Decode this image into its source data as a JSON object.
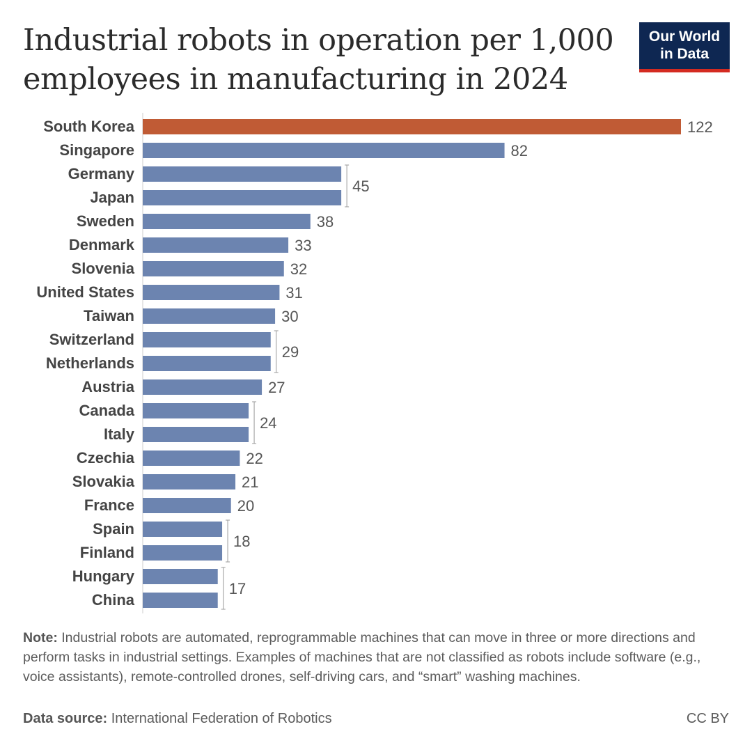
{
  "header": {
    "title": "Industrial robots in operation per 1,000 employees in manufacturing in 2024",
    "logo_line1": "Our World",
    "logo_line2": "in Data"
  },
  "footer": {
    "note_label": "Note:",
    "note_text": " Industrial robots are automated, reprogrammable machines that can move in three or more directions and perform tasks in industrial settings. Examples of machines that are not classified as robots include software (e.g., voice assistants), remote-controlled drones, self-driving cars, and “smart” washing machines.",
    "source_label": "Data source:",
    "source_text": " International Federation of Robotics",
    "license": "CC BY"
  },
  "colors": {
    "bar_default": "#6c84b0",
    "bar_highlight": "#c05b35",
    "axis": "#cccccc",
    "label": "#444444",
    "value": "#555555"
  },
  "chart_data": {
    "type": "bar",
    "orientation": "horizontal",
    "categories": [
      "South Korea",
      "Singapore",
      "Germany",
      "Japan",
      "Sweden",
      "Denmark",
      "Slovenia",
      "United States",
      "Taiwan",
      "Switzerland",
      "Netherlands",
      "Austria",
      "Canada",
      "Italy",
      "Czechia",
      "Slovakia",
      "France",
      "Spain",
      "Finland",
      "Hungary",
      "China"
    ],
    "values": [
      122,
      82,
      45,
      45,
      38,
      33,
      32,
      31,
      30,
      29,
      29,
      27,
      24,
      24,
      22,
      21,
      20,
      18,
      18,
      17,
      17
    ],
    "highlight": [
      "South Korea"
    ],
    "value_labels": [
      {
        "label": "122",
        "rows": [
          0
        ]
      },
      {
        "label": "82",
        "rows": [
          1
        ]
      },
      {
        "label": "45",
        "rows": [
          2,
          3
        ]
      },
      {
        "label": "38",
        "rows": [
          4
        ]
      },
      {
        "label": "33",
        "rows": [
          5
        ]
      },
      {
        "label": "32",
        "rows": [
          6
        ]
      },
      {
        "label": "31",
        "rows": [
          7
        ]
      },
      {
        "label": "30",
        "rows": [
          8
        ]
      },
      {
        "label": "29",
        "rows": [
          9,
          10
        ]
      },
      {
        "label": "27",
        "rows": [
          11
        ]
      },
      {
        "label": "24",
        "rows": [
          12,
          13
        ]
      },
      {
        "label": "22",
        "rows": [
          14
        ]
      },
      {
        "label": "21",
        "rows": [
          15
        ]
      },
      {
        "label": "20",
        "rows": [
          16
        ]
      },
      {
        "label": "18",
        "rows": [
          17,
          18
        ]
      },
      {
        "label": "17",
        "rows": [
          19,
          20
        ]
      }
    ],
    "xlim": [
      0,
      122
    ]
  }
}
